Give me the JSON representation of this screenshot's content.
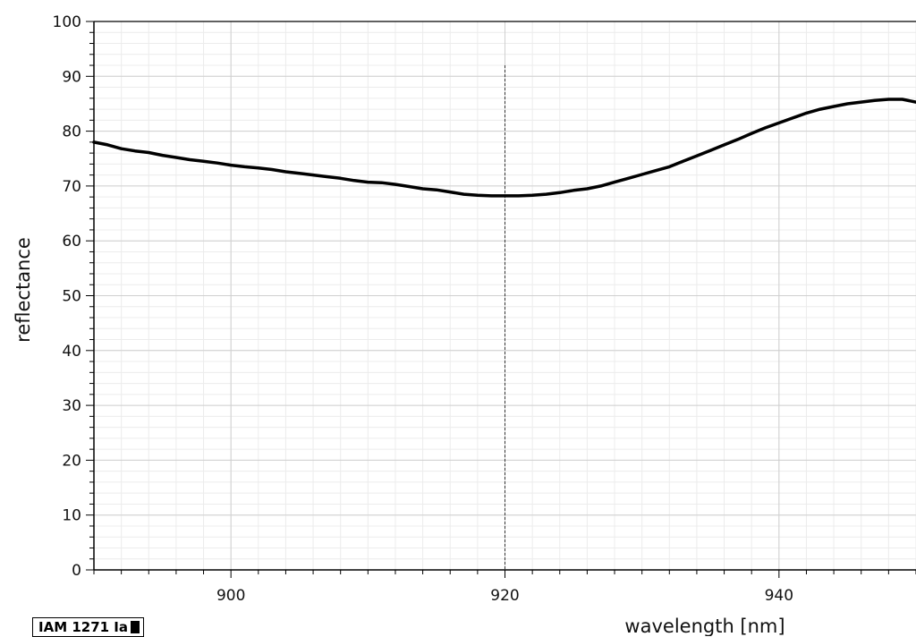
{
  "chart_data": {
    "type": "line",
    "xlabel": "wavelength [nm]",
    "ylabel": "reflectance",
    "xlim": [
      890,
      950
    ],
    "ylim": [
      0,
      100
    ],
    "x_ticks": [
      900,
      920,
      940
    ],
    "y_ticks": [
      0,
      10,
      20,
      30,
      40,
      50,
      60,
      70,
      80,
      90,
      100
    ],
    "grid": true,
    "marker_line_x": 920,
    "series": [
      {
        "name": "IAM 1271 Ia",
        "color": "#000000",
        "x": [
          890,
          891,
          892,
          893,
          894,
          895,
          896,
          897,
          898,
          899,
          900,
          901,
          902,
          903,
          904,
          905,
          906,
          907,
          908,
          909,
          910,
          911,
          912,
          913,
          914,
          915,
          916,
          917,
          918,
          919,
          920,
          921,
          922,
          923,
          924,
          925,
          926,
          927,
          928,
          929,
          930,
          931,
          932,
          933,
          934,
          935,
          936,
          937,
          938,
          939,
          940,
          941,
          942,
          943,
          944,
          945,
          946,
          947,
          948,
          949,
          950
        ],
        "y": [
          78.0,
          77.5,
          76.8,
          76.4,
          76.1,
          75.6,
          75.2,
          74.8,
          74.5,
          74.2,
          73.8,
          73.5,
          73.3,
          73.0,
          72.6,
          72.3,
          72.0,
          71.7,
          71.4,
          71.0,
          70.7,
          70.6,
          70.3,
          69.9,
          69.5,
          69.3,
          68.9,
          68.5,
          68.3,
          68.2,
          68.2,
          68.2,
          68.3,
          68.5,
          68.8,
          69.2,
          69.5,
          70.0,
          70.7,
          71.4,
          72.1,
          72.8,
          73.5,
          74.5,
          75.5,
          76.5,
          77.5,
          78.5,
          79.6,
          80.6,
          81.5,
          82.4,
          83.3,
          84.0,
          84.5,
          85.0,
          85.3,
          85.6,
          85.8,
          85.8,
          85.3
        ]
      }
    ]
  },
  "legend": {
    "label": "IAM 1271 Ia"
  }
}
